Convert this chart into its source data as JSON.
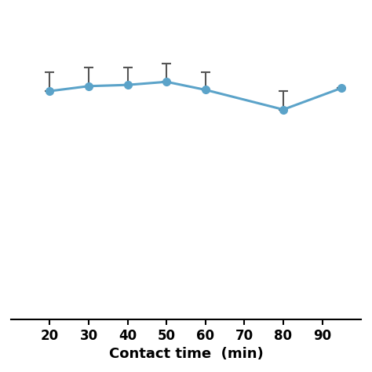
{
  "x": [
    20,
    30,
    40,
    50,
    60,
    80,
    95
  ],
  "y": [
    97.0,
    97.8,
    98.0,
    98.5,
    97.2,
    94.0,
    97.5
  ],
  "yerr_upper": [
    3.0,
    3.0,
    2.8,
    3.0,
    2.8,
    3.0,
    0.0
  ],
  "yerr_lower": [
    0.0,
    0.0,
    0.0,
    0.0,
    0.0,
    0.0,
    0.0
  ],
  "line_color": "#5BA3C9",
  "marker_color": "#5BA3C9",
  "marker_size": 7,
  "line_width": 2.2,
  "xlabel": "Contact time  (min)",
  "xlabel_fontsize": 13,
  "xlabel_fontweight": "bold",
  "xticks": [
    20,
    30,
    40,
    50,
    60,
    70,
    80,
    90
  ],
  "xtick_labels": [
    "20",
    "30",
    "40",
    "50",
    "60",
    "70",
    "80",
    "90"
  ],
  "xlim": [
    10,
    100
  ],
  "ylim": [
    60,
    110
  ],
  "yticks": [],
  "tick_fontsize": 12,
  "tick_fontweight": "bold",
  "background_color": "#ffffff",
  "ecolor": "#555555",
  "elinewidth": 1.5,
  "capsize": 4,
  "capthick": 1.5
}
